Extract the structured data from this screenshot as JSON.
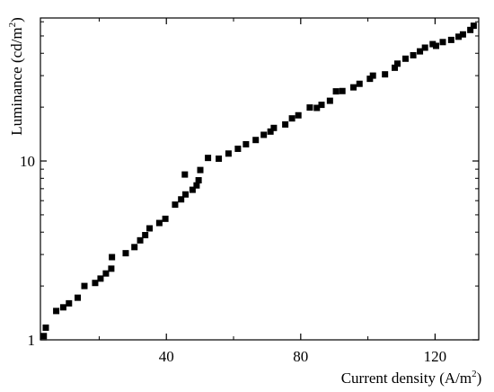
{
  "chart_data": {
    "type": "scatter",
    "title": "",
    "xlabel": "Current density (A/m",
    "xlabel_sup": "2",
    "xlabel_tail": ")",
    "ylabel": "Luminance (cd/m",
    "ylabel_sup": "2",
    "ylabel_tail": ")",
    "x_scale": "linear",
    "y_scale": "log",
    "xlim": [
      2.5,
      133
    ],
    "ylim": [
      1,
      63
    ],
    "x_ticks": [
      {
        "value": 40,
        "label": "40"
      },
      {
        "value": 80,
        "label": "80"
      },
      {
        "value": 120,
        "label": "120"
      }
    ],
    "y_ticks": [
      {
        "value": 1,
        "label": "1"
      },
      {
        "value": 10,
        "label": "10"
      }
    ],
    "grid": false,
    "marker": "square",
    "marker_color": "#000000",
    "series": [
      {
        "x": [
          3.5,
          4.1,
          7.2,
          9.3,
          11.0,
          13.6,
          15.6,
          18.8,
          20.4,
          22.0,
          23.6,
          23.8,
          27.9,
          30.5,
          32.2,
          33.7,
          35.0,
          37.9,
          39.7,
          42.6,
          44.4,
          45.5,
          45.7,
          47.8,
          49.0,
          49.6,
          50.1,
          52.4,
          55.6,
          58.5,
          61.3,
          63.7,
          66.6,
          69.0,
          71.0,
          72.0,
          75.4,
          77.4,
          79.3,
          82.7,
          84.8,
          86.2,
          88.7,
          90.5,
          92.4,
          95.7,
          97.5,
          100.6,
          101.5,
          105.1,
          108.0,
          108.8,
          111.2,
          113.5,
          115.5,
          117.0,
          119.3,
          120.3,
          122.3,
          124.8,
          127.0,
          128.3,
          130.5,
          131.5
        ],
        "y": [
          1.05,
          1.17,
          1.45,
          1.52,
          1.6,
          1.72,
          2.0,
          2.08,
          2.2,
          2.35,
          2.5,
          2.9,
          3.05,
          3.3,
          3.6,
          3.85,
          4.2,
          4.5,
          4.75,
          5.7,
          6.1,
          8.4,
          6.5,
          6.9,
          7.3,
          7.8,
          8.9,
          10.4,
          10.3,
          11.0,
          11.7,
          12.4,
          13.1,
          14.0,
          14.6,
          15.3,
          16.0,
          17.3,
          18.0,
          19.9,
          19.8,
          20.6,
          21.7,
          24.5,
          24.6,
          25.8,
          27.0,
          28.8,
          30.0,
          30.5,
          33.2,
          35.0,
          37.3,
          39.0,
          41.0,
          43.0,
          45.0,
          44.0,
          46.2,
          47.5,
          49.5,
          51.0,
          54.0,
          57.0
        ]
      }
    ]
  }
}
